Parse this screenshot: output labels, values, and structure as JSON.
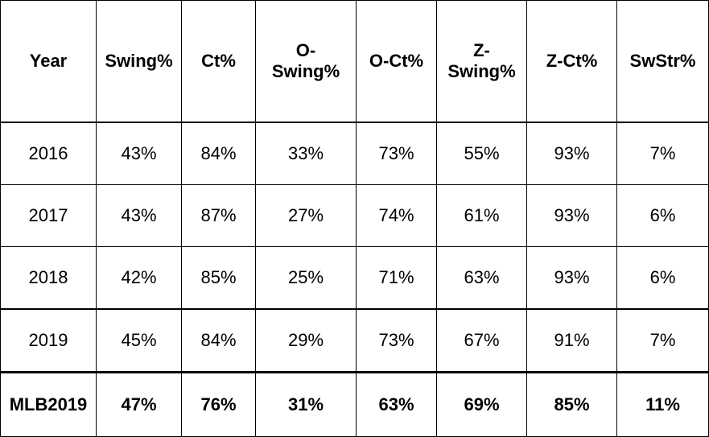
{
  "table": {
    "headers": [
      "Year",
      "Swing%",
      "Ct%",
      "O-\nSwing%",
      "O-Ct%",
      "Z-\nSwing%",
      "Z-Ct%",
      "SwStr%"
    ],
    "rows": [
      [
        "2016",
        "43%",
        "84%",
        "33%",
        "73%",
        "55%",
        "93%",
        "7%"
      ],
      [
        "2017",
        "43%",
        "87%",
        "27%",
        "74%",
        "61%",
        "93%",
        "6%"
      ],
      [
        "2018",
        "42%",
        "85%",
        "25%",
        "71%",
        "63%",
        "93%",
        "6%"
      ],
      [
        "2019",
        "45%",
        "84%",
        "29%",
        "73%",
        "67%",
        "91%",
        "7%"
      ]
    ],
    "summary": [
      "MLB2019",
      "47%",
      "76%",
      "31%",
      "63%",
      "69%",
      "85%",
      "11%"
    ]
  }
}
